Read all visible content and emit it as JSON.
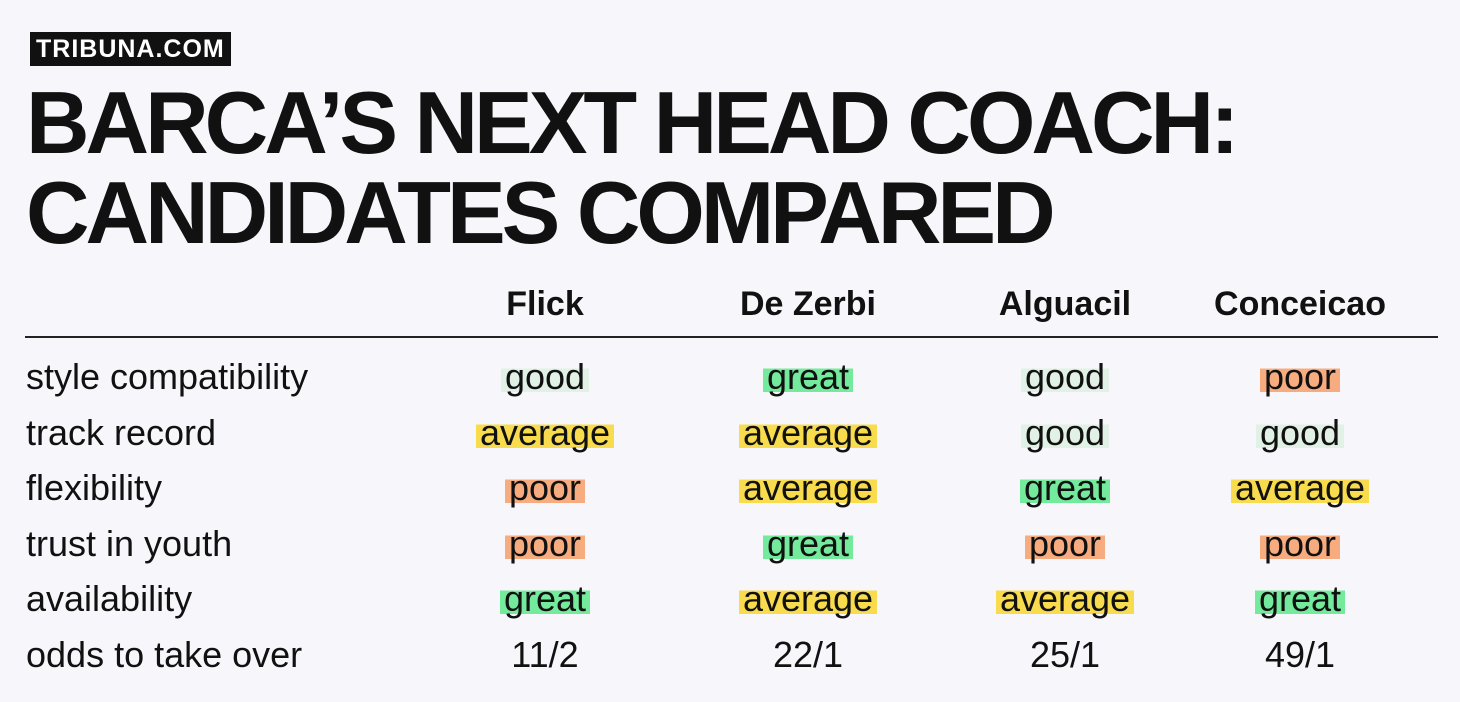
{
  "brand": "TRIBUNA.COM",
  "title": [
    "BARCA’S NEXT HEAD COACH:",
    "CANDIDATES COMPARED"
  ],
  "table": {
    "columns": [
      "Flick",
      "De Zerbi",
      "Alguacil",
      "Conceicao"
    ],
    "rows": [
      {
        "label": "style compatibility",
        "cells": [
          "good",
          "great",
          "good",
          "poor"
        ]
      },
      {
        "label": "track record",
        "cells": [
          "average",
          "average",
          "good",
          "good"
        ]
      },
      {
        "label": "flexibility",
        "cells": [
          "poor",
          "average",
          "great",
          "average"
        ]
      },
      {
        "label": "trust in youth",
        "cells": [
          "poor",
          "great",
          "poor",
          "poor"
        ]
      },
      {
        "label": "availability",
        "cells": [
          "great",
          "average",
          "average",
          "great"
        ]
      },
      {
        "label": "odds to take over",
        "cells": [
          "11/2",
          "22/1",
          "25/1",
          "49/1"
        ]
      }
    ]
  },
  "rating_colors": {
    "great": "#74eb9c",
    "good": "#e1f1e6",
    "average": "#f8dc4e",
    "poor": "#f7ac80"
  }
}
